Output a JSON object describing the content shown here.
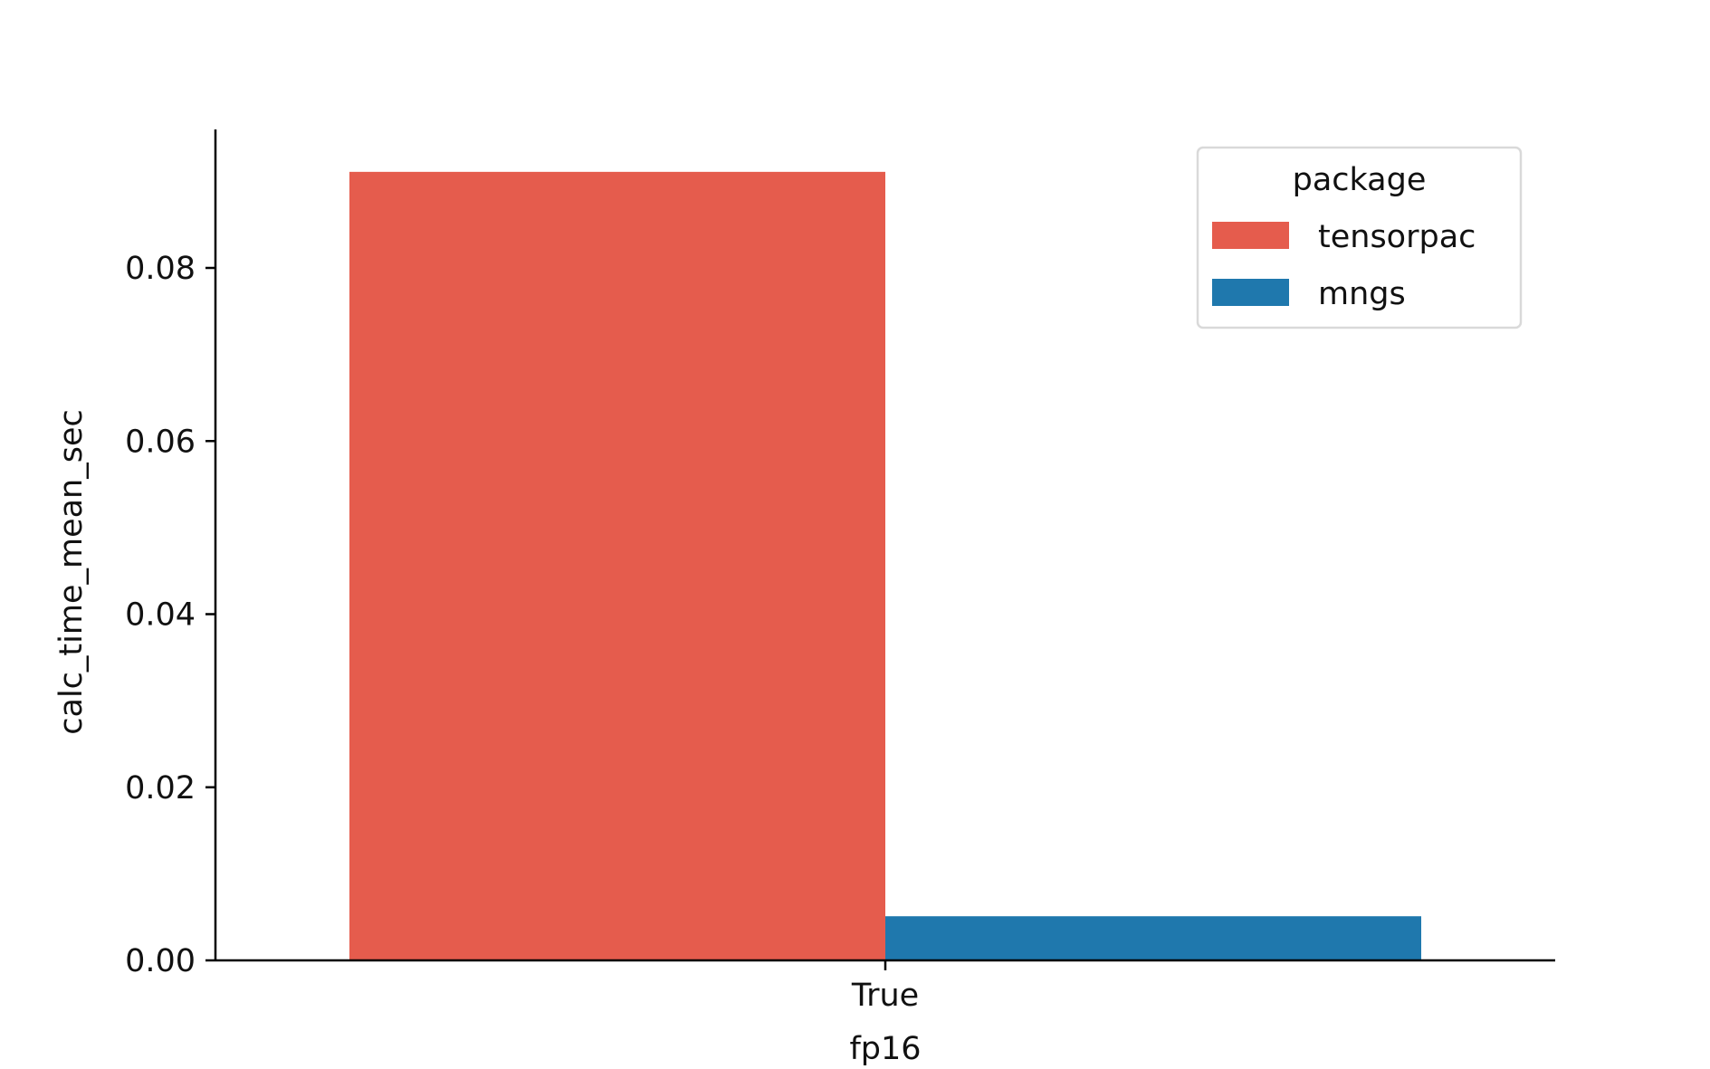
{
  "chart_data": {
    "type": "bar",
    "categories": [
      "True"
    ],
    "series": [
      {
        "name": "tensorpac",
        "values": [
          0.0911
        ],
        "color": "#e55c4d"
      },
      {
        "name": "mngs",
        "values": [
          0.0051
        ],
        "color": "#1f78ad"
      }
    ],
    "xlabel": "fp16",
    "ylabel": "calc_time_mean_sec",
    "ylim": [
      0,
      0.096
    ],
    "yticks": [
      0.0,
      0.02,
      0.04,
      0.06,
      0.08
    ],
    "ytick_labels": [
      "0.00",
      "0.02",
      "0.04",
      "0.06",
      "0.08"
    ],
    "grid": false,
    "legend": {
      "title": "package",
      "placement": "top-right"
    }
  }
}
